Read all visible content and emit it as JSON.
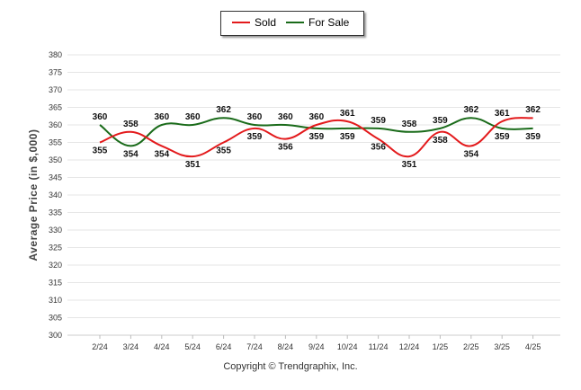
{
  "chart_data": {
    "type": "line",
    "categories": [
      "2/24",
      "3/24",
      "4/24",
      "5/24",
      "6/24",
      "7/24",
      "8/24",
      "9/24",
      "10/24",
      "11/24",
      "12/24",
      "1/25",
      "2/25",
      "3/25",
      "4/25"
    ],
    "series": [
      {
        "name": "Sold",
        "color": "#e31a1c",
        "values": [
          355,
          358,
          354,
          351,
          355,
          359,
          356,
          360,
          361,
          356,
          351,
          358,
          354,
          361,
          362
        ]
      },
      {
        "name": "For Sale",
        "color": "#1a6b1a",
        "values": [
          360,
          354,
          360,
          360,
          362,
          360,
          360,
          359,
          359,
          359,
          358,
          359,
          362,
          359,
          359
        ]
      }
    ],
    "ylabel": "Average Price (in $,000)",
    "ylim": [
      300,
      380
    ],
    "yticks": [
      300,
      305,
      310,
      315,
      320,
      325,
      330,
      335,
      340,
      345,
      350,
      355,
      360,
      365,
      370,
      375,
      380
    ],
    "grid": true,
    "legend_position": "top-center"
  },
  "legend": {
    "sold": "Sold",
    "for_sale": "For Sale"
  },
  "footer": "Copyright © Trendgraphix, Inc."
}
